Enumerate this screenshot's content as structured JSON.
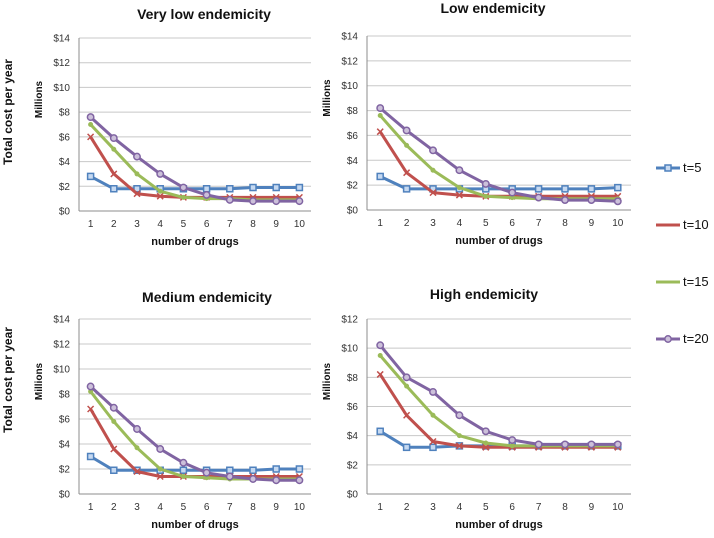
{
  "shared": {
    "ylabel": "Total cost per year",
    "unit_label": "Millions",
    "xlabel": "number of drugs"
  },
  "legend": [
    {
      "name": "t=5",
      "color": "#4f81bd"
    },
    {
      "name": "t=10",
      "color": "#c0504d"
    },
    {
      "name": "t=15",
      "color": "#9bbb59"
    },
    {
      "name": "t=20",
      "color": "#8064a2"
    }
  ],
  "chart_data": [
    {
      "type": "line",
      "title": "Very low endemicity",
      "xlabel": "number of drugs",
      "ylabel": "Millions",
      "x": [
        1,
        2,
        3,
        4,
        5,
        6,
        7,
        8,
        9,
        10
      ],
      "ylim": [
        0,
        14
      ],
      "yticks": [
        "$0",
        "$2",
        "$4",
        "$6",
        "$8",
        "$10",
        "$12",
        "$14"
      ],
      "series": [
        {
          "name": "t=5",
          "values": [
            2.8,
            1.8,
            1.8,
            1.8,
            1.8,
            1.8,
            1.8,
            1.9,
            1.9,
            1.9
          ]
        },
        {
          "name": "t=10",
          "values": [
            6.0,
            3.0,
            1.4,
            1.2,
            1.1,
            1.1,
            1.1,
            1.1,
            1.1,
            1.1
          ]
        },
        {
          "name": "t=15",
          "values": [
            7.0,
            5.0,
            3.0,
            1.6,
            1.1,
            1.0,
            1.0,
            0.9,
            0.9,
            0.9
          ]
        },
        {
          "name": "t=20",
          "values": [
            7.6,
            5.9,
            4.4,
            3.0,
            1.9,
            1.3,
            0.9,
            0.8,
            0.8,
            0.8
          ]
        }
      ]
    },
    {
      "type": "line",
      "title": "Low endemicity",
      "xlabel": "number of drugs",
      "ylabel": "Millions",
      "x": [
        1,
        2,
        3,
        4,
        5,
        6,
        7,
        8,
        9,
        10
      ],
      "ylim": [
        0,
        14
      ],
      "yticks": [
        "$0",
        "$2",
        "$4",
        "$6",
        "$8",
        "$10",
        "$12",
        "$14"
      ],
      "series": [
        {
          "name": "t=5",
          "values": [
            2.7,
            1.7,
            1.7,
            1.7,
            1.7,
            1.7,
            1.7,
            1.7,
            1.7,
            1.8
          ]
        },
        {
          "name": "t=10",
          "values": [
            6.3,
            3.0,
            1.4,
            1.2,
            1.1,
            1.1,
            1.1,
            1.1,
            1.1,
            1.1
          ]
        },
        {
          "name": "t=15",
          "values": [
            7.6,
            5.2,
            3.2,
            1.8,
            1.1,
            1.0,
            0.9,
            0.9,
            0.9,
            0.9
          ]
        },
        {
          "name": "t=20",
          "values": [
            8.2,
            6.4,
            4.8,
            3.2,
            2.1,
            1.4,
            1.0,
            0.8,
            0.8,
            0.7
          ]
        }
      ]
    },
    {
      "type": "line",
      "title": "Medium endemicity",
      "xlabel": "number of drugs",
      "ylabel": "Millions",
      "x": [
        1,
        2,
        3,
        4,
        5,
        6,
        7,
        8,
        9,
        10
      ],
      "ylim": [
        0,
        14
      ],
      "yticks": [
        "$0",
        "$2",
        "$4",
        "$6",
        "$8",
        "$10",
        "$12",
        "$14"
      ],
      "series": [
        {
          "name": "t=5",
          "values": [
            3.0,
            1.9,
            1.9,
            1.9,
            1.9,
            1.9,
            1.9,
            1.9,
            2.0,
            2.0
          ]
        },
        {
          "name": "t=10",
          "values": [
            6.8,
            3.6,
            1.8,
            1.4,
            1.4,
            1.4,
            1.4,
            1.4,
            1.4,
            1.4
          ]
        },
        {
          "name": "t=15",
          "values": [
            8.2,
            5.8,
            3.7,
            2.0,
            1.4,
            1.3,
            1.2,
            1.2,
            1.2,
            1.2
          ]
        },
        {
          "name": "t=20",
          "values": [
            8.6,
            6.9,
            5.2,
            3.6,
            2.5,
            1.7,
            1.4,
            1.2,
            1.1,
            1.1
          ]
        }
      ]
    },
    {
      "type": "line",
      "title": "High endemicity",
      "xlabel": "number of drugs",
      "ylabel": "Millions",
      "x": [
        1,
        2,
        3,
        4,
        5,
        6,
        7,
        8,
        9,
        10
      ],
      "ylim": [
        0,
        12
      ],
      "yticks": [
        "$0",
        "$2",
        "$4",
        "$6",
        "$8",
        "$10",
        "$12"
      ],
      "series": [
        {
          "name": "t=5",
          "values": [
            4.3,
            3.2,
            3.2,
            3.3,
            3.3,
            3.3,
            3.3,
            3.3,
            3.3,
            3.3
          ]
        },
        {
          "name": "t=10",
          "values": [
            8.2,
            5.4,
            3.6,
            3.3,
            3.2,
            3.2,
            3.2,
            3.2,
            3.2,
            3.2
          ]
        },
        {
          "name": "t=15",
          "values": [
            9.5,
            7.4,
            5.4,
            4.0,
            3.5,
            3.3,
            3.3,
            3.3,
            3.3,
            3.3
          ]
        },
        {
          "name": "t=20",
          "values": [
            10.2,
            8.0,
            7.0,
            5.4,
            4.3,
            3.7,
            3.4,
            3.4,
            3.4,
            3.4
          ]
        }
      ]
    }
  ]
}
